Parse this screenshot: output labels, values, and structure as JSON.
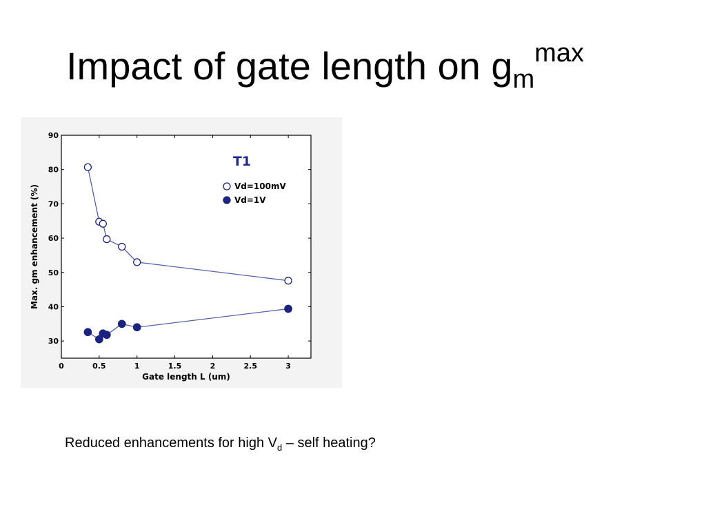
{
  "slide": {
    "title_main": "Impact of gate length on g",
    "title_sub": "m",
    "title_sup": "max",
    "caption_main": "Reduced enhancements for high V",
    "caption_sub": "d",
    "caption_tail": " – self heating?"
  },
  "chart_data": {
    "type": "scatter",
    "title": "T1",
    "xlabel": "Gate length L (um)",
    "ylabel": "Max. gm enhancement (%)",
    "xlim": [
      0,
      3.3
    ],
    "ylim": [
      25,
      90
    ],
    "x_ticks": [
      0,
      0.5,
      1,
      1.5,
      2,
      2.5,
      3
    ],
    "x_tick_labels": [
      "0",
      "0.5",
      "1",
      "1.5",
      "2",
      "2.5",
      "3"
    ],
    "y_ticks": [
      30,
      40,
      50,
      60,
      70,
      80,
      90
    ],
    "y_tick_labels": [
      "30",
      "40",
      "50",
      "60",
      "70",
      "80",
      "90"
    ],
    "grid": false,
    "legend_position": "top-right",
    "colors": {
      "marker": "#1a237e",
      "line": "#5560a8",
      "title": "#1f2a8a"
    },
    "series": [
      {
        "name": "Vd=100mV",
        "marker": "open-circle",
        "x": [
          0.35,
          0.5,
          0.55,
          0.6,
          0.8,
          1.0,
          3.0
        ],
        "y": [
          80.7,
          64.8,
          64.2,
          59.7,
          57.5,
          53.0,
          47.6
        ]
      },
      {
        "name": "Vd=1V",
        "marker": "filled-circle",
        "x": [
          0.35,
          0.5,
          0.55,
          0.6,
          0.8,
          1.0,
          3.0
        ],
        "y": [
          32.6,
          30.5,
          32.2,
          31.8,
          35.0,
          34.0,
          39.4
        ]
      }
    ]
  }
}
